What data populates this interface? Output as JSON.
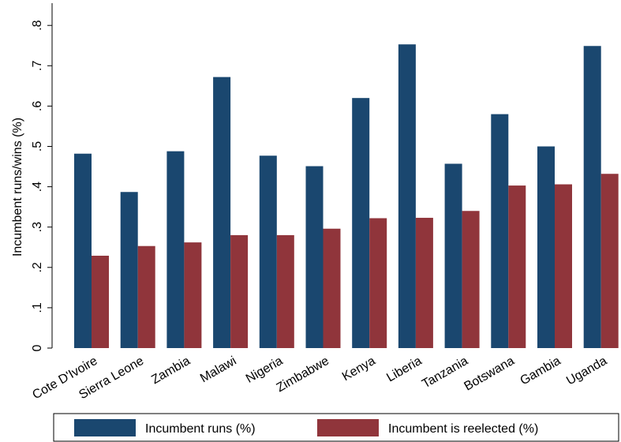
{
  "chart_data": {
    "type": "bar",
    "title": "",
    "xlabel": "",
    "ylabel": "Incumbent runs/wins (%)",
    "ylim": [
      0,
      0.85
    ],
    "yticks": [
      0,
      0.1,
      0.2,
      0.3,
      0.4,
      0.5,
      0.6,
      0.7,
      0.8
    ],
    "ytick_labels": [
      "0",
      ".1",
      ".2",
      ".3",
      ".4",
      ".5",
      ".6",
      ".7",
      ".8"
    ],
    "grid": false,
    "legend_position": "bottom",
    "categories": [
      "Cote D'Ivoire",
      "Sierra Leone",
      "Zambia",
      "Malawi",
      "Nigeria",
      "Zimbabwe",
      "Kenya",
      "Liberia",
      "Tanzania",
      "Botswana",
      "Gambia",
      "Uganda"
    ],
    "series": [
      {
        "name": "Incumbent runs (%)",
        "color": "#1a476f",
        "values": [
          0.482,
          0.387,
          0.488,
          0.672,
          0.477,
          0.451,
          0.62,
          0.753,
          0.457,
          0.58,
          0.5,
          0.749
        ]
      },
      {
        "name": "Incumbent is reelected (%)",
        "color": "#90353b",
        "values": [
          0.229,
          0.253,
          0.262,
          0.28,
          0.28,
          0.296,
          0.322,
          0.323,
          0.34,
          0.403,
          0.406,
          0.432
        ]
      }
    ]
  }
}
